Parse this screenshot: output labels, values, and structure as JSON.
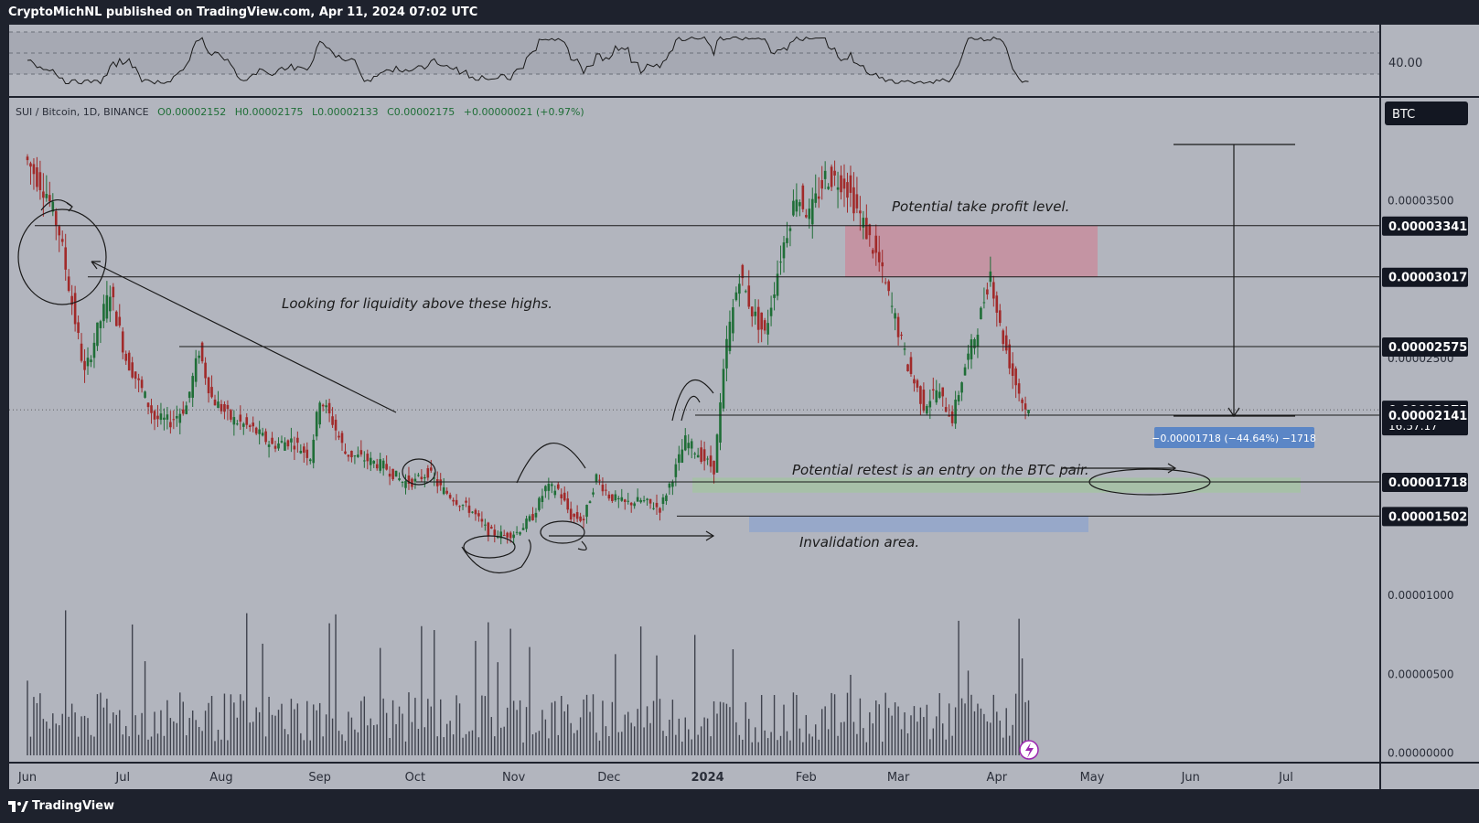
{
  "header": {
    "publisher": "CryptoMichNL published on TradingView.com, Apr 11, 2024 07:02 UTC"
  },
  "footer": {
    "brand": "TradingView"
  },
  "legend": {
    "symbol": "SUI / Bitcoin, 1D, BINANCE",
    "open": "O0.00002152",
    "high": "H0.00002175",
    "low": "L0.00002133",
    "close": "C0.00002175",
    "change": "+0.00000021 (+0.97%)"
  },
  "currency_button": "BTC",
  "rsi": {
    "value_label": "40.00"
  },
  "chart_data": {
    "type": "candlestick",
    "pair": "SUI / Bitcoin",
    "timeframe": "1D",
    "exchange": "BINANCE",
    "x_tick_labels": [
      "Jun",
      "Jul",
      "Aug",
      "Sep",
      "Oct",
      "Nov",
      "Dec",
      "2024",
      "Feb",
      "Mar",
      "Apr",
      "May",
      "Jun",
      "Jul"
    ],
    "y_tick_labels": [
      "0.00003500",
      "0.00002500",
      "0.00001000",
      "0.00000500",
      "0.00000000"
    ],
    "ylim": [
      1.1e-06,
      3.9e-05
    ],
    "price_path": [
      [
        "2023-06-01",
        3.78e-05
      ],
      [
        "2023-06-08",
        3.55e-05
      ],
      [
        "2023-06-12",
        3.3e-05
      ],
      [
        "2023-06-16",
        2.85e-05
      ],
      [
        "2023-06-20",
        2.4e-05
      ],
      [
        "2023-06-24",
        2.68e-05
      ],
      [
        "2023-06-28",
        2.93e-05
      ],
      [
        "2023-07-03",
        2.5e-05
      ],
      [
        "2023-07-08",
        2.3e-05
      ],
      [
        "2023-07-12",
        2.12e-05
      ],
      [
        "2023-07-17",
        2.1e-05
      ],
      [
        "2023-07-22",
        2.2e-05
      ],
      [
        "2023-07-26",
        2.55e-05
      ],
      [
        "2023-07-30",
        2.25e-05
      ],
      [
        "2023-08-05",
        2.12e-05
      ],
      [
        "2023-08-12",
        2.05e-05
      ],
      [
        "2023-08-18",
        1.95e-05
      ],
      [
        "2023-08-24",
        1.98e-05
      ],
      [
        "2023-08-30",
        1.88e-05
      ],
      [
        "2023-09-02",
        2.25e-05
      ],
      [
        "2023-09-06",
        2.1e-05
      ],
      [
        "2023-09-10",
        1.9e-05
      ],
      [
        "2023-09-15",
        1.87e-05
      ],
      [
        "2023-09-22",
        1.82e-05
      ],
      [
        "2023-09-28",
        1.72e-05
      ],
      [
        "2023-10-02",
        1.72e-05
      ],
      [
        "2023-10-06",
        1.78e-05
      ],
      [
        "2023-10-10",
        1.68e-05
      ],
      [
        "2023-10-15",
        1.6e-05
      ],
      [
        "2023-10-20",
        1.53e-05
      ],
      [
        "2023-10-25",
        1.4e-05
      ],
      [
        "2023-10-30",
        1.38e-05
      ],
      [
        "2023-11-03",
        1.4e-05
      ],
      [
        "2023-11-08",
        1.5e-05
      ],
      [
        "2023-11-12",
        1.68e-05
      ],
      [
        "2023-11-16",
        1.67e-05
      ],
      [
        "2023-11-20",
        1.5e-05
      ],
      [
        "2023-11-24",
        1.48e-05
      ],
      [
        "2023-11-28",
        1.75e-05
      ],
      [
        "2023-12-02",
        1.63e-05
      ],
      [
        "2023-12-07",
        1.58e-05
      ],
      [
        "2023-12-12",
        1.6e-05
      ],
      [
        "2023-12-18",
        1.55e-05
      ],
      [
        "2023-12-22",
        1.75e-05
      ],
      [
        "2023-12-26",
        1.98e-05
      ],
      [
        "2023-12-30",
        1.9e-05
      ],
      [
        "2024-01-04",
        1.8e-05
      ],
      [
        "2024-01-08",
        2.6e-05
      ],
      [
        "2024-01-12",
        3.03e-05
      ],
      [
        "2024-01-16",
        2.8e-05
      ],
      [
        "2024-01-20",
        2.65e-05
      ],
      [
        "2024-01-25",
        3.15e-05
      ],
      [
        "2024-01-30",
        3.55e-05
      ],
      [
        "2024-02-03",
        3.4e-05
      ],
      [
        "2024-02-08",
        3.65e-05
      ],
      [
        "2024-02-14",
        3.62e-05
      ],
      [
        "2024-02-19",
        3.4e-05
      ],
      [
        "2024-02-25",
        3.1e-05
      ],
      [
        "2024-03-01",
        2.75e-05
      ],
      [
        "2024-03-05",
        2.45e-05
      ],
      [
        "2024-03-10",
        2.2e-05
      ],
      [
        "2024-03-14",
        2.3e-05
      ],
      [
        "2024-03-19",
        2.12e-05
      ],
      [
        "2024-03-23",
        2.45e-05
      ],
      [
        "2024-03-27",
        2.7e-05
      ],
      [
        "2024-03-31",
        3.05e-05
      ],
      [
        "2024-04-03",
        2.7e-05
      ],
      [
        "2024-04-07",
        2.4e-05
      ],
      [
        "2024-04-11",
        2.175e-05
      ]
    ],
    "levels": [
      "0.00003341",
      "0.00003017",
      "0.00002575",
      "0.00002175",
      "0.00002141",
      "0.00001718",
      "0.00001502"
    ],
    "countdown": "16:57:17",
    "measure_label": "−0.00001718 (−44.64%) −1718",
    "annotations": [
      "Potential take profit level.",
      "Looking for liquidity above these highs.",
      "Potential retest is an entry on the BTC pair.",
      "Invalidation area."
    ],
    "zones": [
      {
        "type": "take-profit",
        "from": 3.017e-05,
        "to": 3.341e-05,
        "color": "#c98a99"
      },
      {
        "type": "entry",
        "from": 1.65e-05,
        "to": 1.745e-05,
        "color": "#a3c4a0"
      },
      {
        "type": "invalidation",
        "from": 1.4e-05,
        "to": 1.502e-05,
        "color": "#8ea4cc"
      }
    ],
    "grid": false
  },
  "colors": {
    "background": "#b2b5be",
    "up": "#1f6e37",
    "down": "#a12a2a",
    "accent_blue": "#5b86c6",
    "frame": "#1e222d"
  }
}
